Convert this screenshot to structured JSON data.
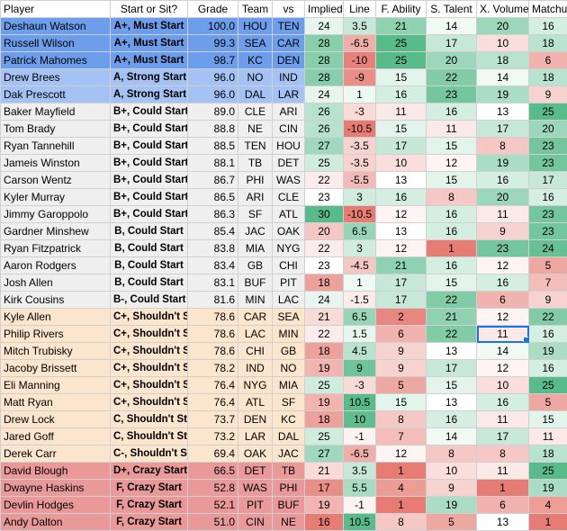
{
  "headers": [
    "Player",
    "Start or Sit?",
    "Grade",
    "Team",
    "vs",
    "Implied",
    "Line",
    "F. Ability",
    "S. Talent",
    "X. Volume",
    "Matchup"
  ],
  "rows": [
    {
      "player": "Deshaun Watson",
      "ss": "A+, Must Start",
      "grade": "100.0",
      "team": "HOU",
      "vs": "TEN",
      "implied": "24",
      "line": "3.5",
      "fab": "21",
      "st": "14",
      "xv": "20",
      "mu": "16"
    },
    {
      "player": "Russell Wilson",
      "ss": "A+, Must Start",
      "grade": "99.3",
      "team": "SEA",
      "vs": "CAR",
      "implied": "28",
      "line": "-6.5",
      "fab": "25",
      "st": "17",
      "xv": "10",
      "mu": "18"
    },
    {
      "player": "Patrick Mahomes",
      "ss": "A+, Must Start",
      "grade": "98.7",
      "team": "KC",
      "vs": "DEN",
      "implied": "28",
      "line": "-10",
      "fab": "25",
      "st": "20",
      "xv": "18",
      "mu": "6"
    },
    {
      "player": "Drew Brees",
      "ss": "A, Strong Start",
      "grade": "96.0",
      "team": "NO",
      "vs": "IND",
      "implied": "28",
      "line": "-9",
      "fab": "15",
      "st": "22",
      "xv": "14",
      "mu": "18"
    },
    {
      "player": "Dak Prescott",
      "ss": "A, Strong Start",
      "grade": "96.0",
      "team": "DAL",
      "vs": "LAR",
      "implied": "24",
      "line": "1",
      "fab": "16",
      "st": "23",
      "xv": "19",
      "mu": "9"
    },
    {
      "player": "Baker Mayfield",
      "ss": "B+, Could Start",
      "grade": "89.0",
      "team": "CLE",
      "vs": "ARI",
      "implied": "26",
      "line": "-3",
      "fab": "11",
      "st": "16",
      "xv": "13",
      "mu": "25"
    },
    {
      "player": "Tom Brady",
      "ss": "B+, Could Start",
      "grade": "88.8",
      "team": "NE",
      "vs": "CIN",
      "implied": "26",
      "line": "-10.5",
      "fab": "15",
      "st": "11",
      "xv": "17",
      "mu": "20"
    },
    {
      "player": "Ryan Tannehill",
      "ss": "B+, Could Start",
      "grade": "88.5",
      "team": "TEN",
      "vs": "HOU",
      "implied": "27",
      "line": "-3.5",
      "fab": "17",
      "st": "15",
      "xv": "8",
      "mu": "23"
    },
    {
      "player": "Jameis Winston",
      "ss": "B+, Could Start",
      "grade": "88.1",
      "team": "TB",
      "vs": "DET",
      "implied": "25",
      "line": "-3.5",
      "fab": "10",
      "st": "12",
      "xv": "19",
      "mu": "23"
    },
    {
      "player": "Carson Wentz",
      "ss": "B+, Could Start",
      "grade": "86.7",
      "team": "PHI",
      "vs": "WAS",
      "implied": "22",
      "line": "-5.5",
      "fab": "13",
      "st": "15",
      "xv": "16",
      "mu": "17"
    },
    {
      "player": "Kyler Murray",
      "ss": "B+, Could Start",
      "grade": "86.5",
      "team": "ARI",
      "vs": "CLE",
      "implied": "23",
      "line": "3",
      "fab": "16",
      "st": "8",
      "xv": "20",
      "mu": "16"
    },
    {
      "player": "Jimmy Garoppolo",
      "ss": "B+, Could Start",
      "grade": "86.3",
      "team": "SF",
      "vs": "ATL",
      "implied": "30",
      "line": "-10.5",
      "fab": "12",
      "st": "16",
      "xv": "11",
      "mu": "23"
    },
    {
      "player": "Gardner Minshew",
      "ss": "B, Could Start",
      "grade": "85.4",
      "team": "JAC",
      "vs": "OAK",
      "implied": "20",
      "line": "6.5",
      "fab": "13",
      "st": "16",
      "xv": "9",
      "mu": "23"
    },
    {
      "player": "Ryan Fitzpatrick",
      "ss": "B, Could Start",
      "grade": "83.8",
      "team": "MIA",
      "vs": "NYG",
      "implied": "22",
      "line": "3",
      "fab": "12",
      "st": "1",
      "xv": "23",
      "mu": "24"
    },
    {
      "player": "Aaron Rodgers",
      "ss": "B, Could Start",
      "grade": "83.4",
      "team": "GB",
      "vs": "CHI",
      "implied": "23",
      "line": "-4.5",
      "fab": "21",
      "st": "16",
      "xv": "12",
      "mu": "5"
    },
    {
      "player": "Josh Allen",
      "ss": "B, Could Start",
      "grade": "83.1",
      "team": "BUF",
      "vs": "PIT",
      "implied": "18",
      "line": "1",
      "fab": "17",
      "st": "15",
      "xv": "16",
      "mu": "7"
    },
    {
      "player": "Kirk Cousins",
      "ss": "B-, Could Start",
      "grade": "81.6",
      "team": "MIN",
      "vs": "LAC",
      "implied": "24",
      "line": "-1.5",
      "fab": "17",
      "st": "22",
      "xv": "6",
      "mu": "9"
    },
    {
      "player": "Kyle Allen",
      "ss": "C+, Shouldn't Start",
      "grade": "78.6",
      "team": "CAR",
      "vs": "SEA",
      "implied": "21",
      "line": "6.5",
      "fab": "2",
      "st": "21",
      "xv": "12",
      "mu": "22"
    },
    {
      "player": "Philip Rivers",
      "ss": "C+, Shouldn't Start",
      "grade": "78.6",
      "team": "LAC",
      "vs": "MIN",
      "implied": "22",
      "line": "1.5",
      "fab": "6",
      "st": "22",
      "xv": "11",
      "mu": "16"
    },
    {
      "player": "Mitch Trubisky",
      "ss": "C+, Shouldn't Start",
      "grade": "78.6",
      "team": "CHI",
      "vs": "GB",
      "implied": "18",
      "line": "4.5",
      "fab": "9",
      "st": "13",
      "xv": "14",
      "mu": "19"
    },
    {
      "player": "Jacoby Brissett",
      "ss": "C+, Shouldn't Start",
      "grade": "78.2",
      "team": "IND",
      "vs": "NO",
      "implied": "19",
      "line": "9",
      "fab": "9",
      "st": "17",
      "xv": "12",
      "mu": "16"
    },
    {
      "player": "Eli Manning",
      "ss": "C+, Shouldn't Start",
      "grade": "76.4",
      "team": "NYG",
      "vs": "MIA",
      "implied": "25",
      "line": "-3",
      "fab": "5",
      "st": "15",
      "xv": "10",
      "mu": "25"
    },
    {
      "player": "Matt Ryan",
      "ss": "C+, Shouldn't Start",
      "grade": "76.4",
      "team": "ATL",
      "vs": "SF",
      "implied": "19",
      "line": "10.5",
      "fab": "15",
      "st": "13",
      "xv": "16",
      "mu": "5"
    },
    {
      "player": "Drew Lock",
      "ss": "C, Shouldn't Start",
      "grade": "73.7",
      "team": "DEN",
      "vs": "KC",
      "implied": "18",
      "line": "10",
      "fab": "8",
      "st": "16",
      "xv": "11",
      "mu": "15"
    },
    {
      "player": "Jared Goff",
      "ss": "C, Shouldn't Start",
      "grade": "73.2",
      "team": "LAR",
      "vs": "DAL",
      "implied": "25",
      "line": "-1",
      "fab": "7",
      "st": "14",
      "xv": "17",
      "mu": "11"
    },
    {
      "player": "Derek Carr",
      "ss": "C-, Shouldn't Start",
      "grade": "69.4",
      "team": "OAK",
      "vs": "JAC",
      "implied": "27",
      "line": "-6.5",
      "fab": "12",
      "st": "8",
      "xv": "8",
      "mu": "18"
    },
    {
      "player": "David Blough",
      "ss": "D+, Crazy Start",
      "grade": "66.5",
      "team": "DET",
      "vs": "TB",
      "implied": "21",
      "line": "3.5",
      "fab": "1",
      "st": "10",
      "xv": "11",
      "mu": "25"
    },
    {
      "player": "Dwayne Haskins",
      "ss": "F, Crazy Start",
      "grade": "52.8",
      "team": "WAS",
      "vs": "PHI",
      "implied": "17",
      "line": "5.5",
      "fab": "4",
      "st": "9",
      "xv": "1",
      "mu": "19"
    },
    {
      "player": "Devlin Hodges",
      "ss": "F, Crazy Start",
      "grade": "52.1",
      "team": "PIT",
      "vs": "BUF",
      "implied": "19",
      "line": "-1",
      "fab": "1",
      "st": "19",
      "xv": "6",
      "mu": "4"
    },
    {
      "player": "Andy Dalton",
      "ss": "F, Crazy Start",
      "grade": "51.0",
      "team": "CIN",
      "vs": "NE",
      "implied": "16",
      "line": "10.5",
      "fab": "8",
      "st": "5",
      "xv": "13",
      "mu": "1"
    }
  ],
  "tier_colors": {
    "A+": "#6d9eeb",
    "A": "#a4c2f4",
    "B": "#efefef",
    "C": "#fce5cd",
    "DF": "#ea9999"
  },
  "selected_cell": {
    "row": 18,
    "col": "xv"
  }
}
